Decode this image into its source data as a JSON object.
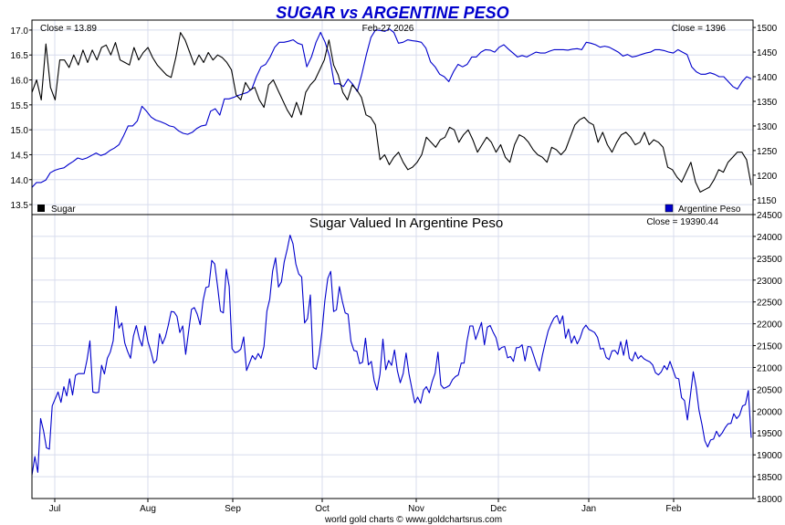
{
  "title": "SUGAR vs ARGENTINE PESO",
  "date_label": "Feb-27  2026",
  "footer": "world gold charts © www.goldchartsrus.com",
  "colors": {
    "title": "#0000cc",
    "sugar": "#000000",
    "peso": "#0000cc",
    "ratio": "#0000cc",
    "grid": "#d8dcee"
  },
  "chart_data": [
    {
      "type": "line",
      "title": "SUGAR vs ARGENTINE PESO",
      "x_tick_labels": [
        "Jul",
        "Aug",
        "Sep",
        "Oct",
        "Nov",
        "Dec",
        "Jan",
        "Feb"
      ],
      "left_axis": {
        "ylim": [
          13.3,
          17.2
        ],
        "ticks": [
          "13.5",
          "14.0",
          "14.5",
          "15.0",
          "15.5",
          "16.0",
          "16.5",
          "17.0"
        ],
        "tick_values": [
          13.5,
          14.0,
          14.5,
          15.0,
          15.5,
          16.0,
          16.5,
          17.0
        ]
      },
      "right_axis": {
        "ylim": [
          1120,
          1515
        ],
        "ticks": [
          "1150",
          "1200",
          "1250",
          "1300",
          "1350",
          "1400",
          "1450",
          "1500"
        ],
        "tick_values": [
          1150,
          1200,
          1250,
          1300,
          1350,
          1400,
          1450,
          1500
        ]
      },
      "close_left": "Close = 13.89",
      "close_right": "Close = 1396",
      "legend_left": "Sugar",
      "legend_right": "Argentine Peso",
      "series": [
        {
          "name": "Sugar",
          "axis": "left",
          "values": [
            15.75,
            16.0,
            15.6,
            16.72,
            15.85,
            15.6,
            16.4,
            16.4,
            16.25,
            16.5,
            16.3,
            16.6,
            16.35,
            16.6,
            16.4,
            16.65,
            16.7,
            16.5,
            16.75,
            16.4,
            16.35,
            16.3,
            16.65,
            16.4,
            16.55,
            16.65,
            16.45,
            16.3,
            16.2,
            16.1,
            16.05,
            16.45,
            16.95,
            16.8,
            16.55,
            16.3,
            16.5,
            16.35,
            16.55,
            16.4,
            16.5,
            16.45,
            16.35,
            16.2,
            15.7,
            15.6,
            15.95,
            15.8,
            15.85,
            15.6,
            15.45,
            15.9,
            16.0,
            15.8,
            15.6,
            15.4,
            15.25,
            15.55,
            15.3,
            15.75,
            15.9,
            16.0,
            16.2,
            16.4,
            16.8,
            16.3,
            16.1,
            15.75,
            15.6,
            15.9,
            15.8,
            15.65,
            15.3,
            15.25,
            15.1,
            14.4,
            14.5,
            14.3,
            14.45,
            14.55,
            14.35,
            14.2,
            14.25,
            14.35,
            14.5,
            14.85,
            14.75,
            14.65,
            14.8,
            14.85,
            15.05,
            15.0,
            14.75,
            14.9,
            15.0,
            14.8,
            14.55,
            14.7,
            14.85,
            14.75,
            14.55,
            14.7,
            14.45,
            14.35,
            14.7,
            14.9,
            14.85,
            14.75,
            14.6,
            14.5,
            14.45,
            14.35,
            14.65,
            14.6,
            14.5,
            14.6,
            14.85,
            15.1,
            15.2,
            15.25,
            15.15,
            15.1,
            14.75,
            14.95,
            14.7,
            14.55,
            14.75,
            14.9,
            14.95,
            14.85,
            14.7,
            14.75,
            14.95,
            14.7,
            14.8,
            14.75,
            14.65,
            14.25,
            14.2,
            14.05,
            13.95,
            14.15,
            14.35,
            13.95,
            13.75,
            13.8,
            13.85,
            14.0,
            14.2,
            14.15,
            14.35,
            14.45,
            14.55,
            14.55,
            14.4,
            13.89
          ]
        },
        {
          "name": "Argentine Peso",
          "axis": "right",
          "values": [
            1175,
            1185,
            1185,
            1190,
            1205,
            1210,
            1213,
            1215,
            1222,
            1228,
            1235,
            1232,
            1235,
            1240,
            1245,
            1240,
            1243,
            1250,
            1255,
            1262,
            1280,
            1300,
            1300,
            1310,
            1340,
            1330,
            1318,
            1312,
            1309,
            1305,
            1300,
            1298,
            1290,
            1285,
            1283,
            1287,
            1295,
            1300,
            1302,
            1330,
            1335,
            1322,
            1355,
            1355,
            1358,
            1362,
            1365,
            1368,
            1375,
            1400,
            1420,
            1425,
            1440,
            1460,
            1470,
            1470,
            1472,
            1475,
            1468,
            1465,
            1420,
            1440,
            1470,
            1490,
            1470,
            1440,
            1385,
            1386,
            1380,
            1395,
            1385,
            1370,
            1405,
            1445,
            1480,
            1495,
            1494,
            1492,
            1497,
            1490,
            1468,
            1470,
            1475,
            1473,
            1472,
            1470,
            1458,
            1430,
            1420,
            1405,
            1400,
            1390,
            1410,
            1425,
            1420,
            1425,
            1440,
            1440,
            1450,
            1455,
            1454,
            1450,
            1460,
            1465,
            1456,
            1448,
            1440,
            1443,
            1440,
            1445,
            1450,
            1448,
            1448,
            1452,
            1455,
            1455,
            1455,
            1454,
            1456,
            1457,
            1455,
            1470,
            1468,
            1465,
            1460,
            1462,
            1460,
            1455,
            1450,
            1442,
            1445,
            1440,
            1442,
            1445,
            1448,
            1450,
            1455,
            1455,
            1453,
            1450,
            1448,
            1455,
            1450,
            1445,
            1420,
            1410,
            1405,
            1405,
            1408,
            1405,
            1400,
            1400,
            1390,
            1380,
            1375,
            1390,
            1400,
            1396
          ]
        }
      ]
    },
    {
      "type": "line",
      "title": "Sugar Valued In Argentine Peso",
      "x_tick_labels": [
        "Jul",
        "Aug",
        "Sep",
        "Oct",
        "Nov",
        "Dec",
        "Jan",
        "Feb"
      ],
      "right_axis": {
        "ylim": [
          18000,
          24500
        ],
        "ticks": [
          "18000",
          "18500",
          "19000",
          "19500",
          "20000",
          "20500",
          "21000",
          "21500",
          "22000",
          "22500",
          "23000",
          "23500",
          "24000",
          "24500"
        ],
        "tick_values": [
          18000,
          18500,
          19000,
          19500,
          20000,
          20500,
          21000,
          21500,
          22000,
          22500,
          23000,
          23500,
          24000,
          24500
        ]
      },
      "close_right": "Close = 19390.44",
      "series": [
        {
          "name": "Sugar Valued In Argentine Peso",
          "axis": "right",
          "values": [
            18530,
            18960,
            18600,
            19830,
            19550,
            19160,
            19130,
            20120,
            20280,
            20440,
            20200,
            20560,
            20350,
            20740,
            20370,
            20820,
            20860,
            20860,
            20860,
            21180,
            21610,
            20440,
            20420,
            20430,
            21050,
            20850,
            21210,
            21350,
            21610,
            22400,
            21900,
            22020,
            21560,
            21360,
            21210,
            21720,
            21960,
            21660,
            21490,
            21950,
            21590,
            21370,
            21100,
            21170,
            21770,
            21540,
            21700,
            21960,
            22280,
            22270,
            22170,
            21800,
            21950,
            21300,
            21820,
            22330,
            22370,
            22220,
            21980,
            22530,
            22830,
            22850,
            23450,
            23370,
            22850,
            22290,
            22250,
            23250,
            22850,
            21430,
            21340,
            21360,
            21420,
            21700,
            20930,
            21100,
            21270,
            21180,
            21320,
            21210,
            21480,
            22290,
            22560,
            23210,
            23510,
            22840,
            22960,
            23420,
            23700,
            24030,
            23830,
            23370,
            23140,
            23070,
            22020,
            22120,
            22660,
            21000,
            20960,
            21300,
            21810,
            22530,
            23040,
            23200,
            22280,
            22320,
            22850,
            22520,
            22250,
            22220,
            21600,
            21390,
            21370,
            21090,
            21120,
            21670,
            21060,
            21140,
            20700,
            20480,
            20850,
            21650,
            20950,
            21160,
            21050,
            21400,
            20920,
            20650,
            20860,
            21330,
            20850,
            20520,
            20190,
            20320,
            20180,
            20480,
            20560,
            20420,
            20680,
            20870,
            21350,
            20600,
            20520,
            20550,
            20590,
            20720,
            20790,
            20830,
            21100,
            21100,
            21600,
            21950,
            21950,
            21640,
            21830,
            22030,
            21520,
            21920,
            21960,
            21810,
            21680,
            21400,
            21460,
            21480,
            21220,
            21250,
            21140,
            21450,
            21460,
            21520,
            21150,
            21480,
            21470,
            21270,
            21060,
            20920,
            21280,
            21570,
            21840,
            22000,
            22130,
            22190,
            22000,
            22180,
            21670,
            21880,
            21560,
            21720,
            21540,
            21670,
            21880,
            21970,
            21870,
            21840,
            21800,
            21690,
            21420,
            21440,
            21230,
            21180,
            21380,
            21390,
            21300,
            21590,
            21280,
            21630,
            21210,
            21150,
            21350,
            21200,
            21270,
            21200,
            21160,
            21130,
            21060,
            20880,
            20830,
            20900,
            21040,
            20950,
            21140,
            20950,
            20760,
            20740,
            20310,
            20240,
            19800,
            20350,
            20900,
            20550,
            20020,
            19700,
            19320,
            19180,
            19340,
            19360,
            19540,
            19420,
            19500,
            19620,
            19710,
            19720,
            19940,
            19830,
            19910,
            20120,
            20150,
            20470,
            19390
          ]
        }
      ]
    }
  ]
}
